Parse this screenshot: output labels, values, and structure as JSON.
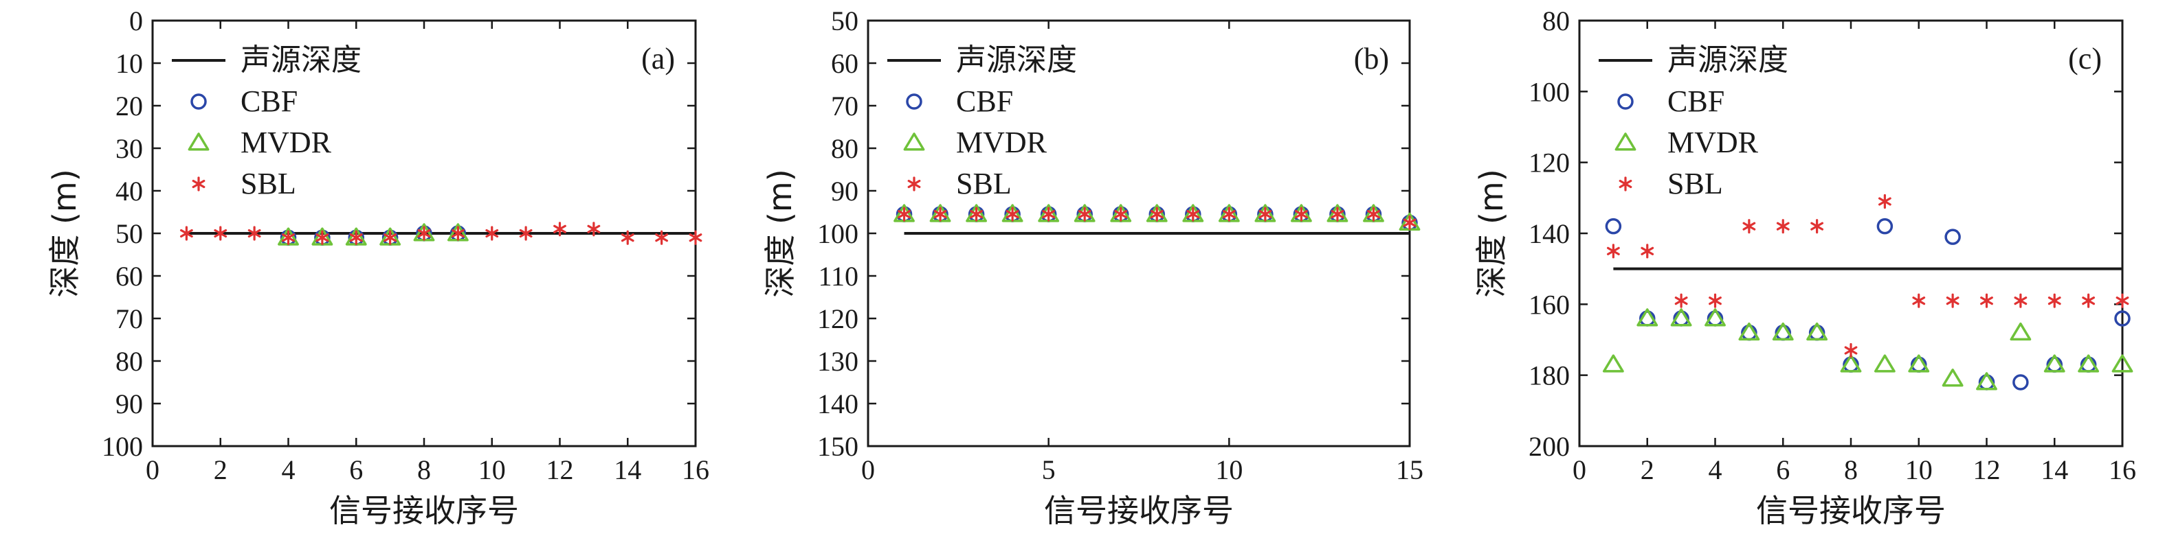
{
  "chart_data": [
    {
      "type": "scatter",
      "panel_label": "(a)",
      "xlabel": "信号接收序号",
      "ylabel": "深度 (m)",
      "xlim": [
        0,
        16
      ],
      "ylim": [
        0,
        100
      ],
      "y_inverted": true,
      "xticks": [
        0,
        2,
        4,
        6,
        8,
        10,
        12,
        14,
        16
      ],
      "yticks": [
        0,
        10,
        20,
        30,
        40,
        50,
        60,
        70,
        80,
        90,
        100
      ],
      "legend_position": "top-left",
      "reference_line": {
        "name": "声源深度",
        "y": 50,
        "x": [
          1,
          16
        ],
        "color": "#1a1a1a"
      },
      "series": [
        {
          "name": "CBF",
          "marker": "circle",
          "color": "#2a46a8",
          "points": [
            [
              4,
              51
            ],
            [
              5,
              51
            ],
            [
              6,
              51
            ],
            [
              7,
              51
            ],
            [
              8,
              50
            ],
            [
              9,
              50
            ]
          ]
        },
        {
          "name": "MVDR",
          "marker": "triangle",
          "color": "#6fc23a",
          "points": [
            [
              4,
              51
            ],
            [
              5,
              51
            ],
            [
              6,
              51
            ],
            [
              7,
              51
            ],
            [
              8,
              50
            ],
            [
              9,
              50
            ]
          ]
        },
        {
          "name": "SBL",
          "marker": "asterisk",
          "color": "#e03232",
          "points": [
            [
              1,
              50
            ],
            [
              2,
              50
            ],
            [
              3,
              50
            ],
            [
              4,
              51
            ],
            [
              5,
              51
            ],
            [
              6,
              51
            ],
            [
              7,
              51
            ],
            [
              8,
              50
            ],
            [
              9,
              50
            ],
            [
              10,
              50
            ],
            [
              11,
              50
            ],
            [
              12,
              49
            ],
            [
              13,
              49
            ],
            [
              14,
              51
            ],
            [
              15,
              51
            ],
            [
              16,
              51
            ]
          ]
        }
      ]
    },
    {
      "type": "scatter",
      "panel_label": "(b)",
      "xlabel": "信号接收序号",
      "ylabel": "深度 (m)",
      "xlim": [
        0,
        15
      ],
      "ylim": [
        50,
        150
      ],
      "y_inverted": true,
      "xticks": [
        0,
        5,
        10,
        15
      ],
      "yticks": [
        50,
        60,
        70,
        80,
        90,
        100,
        110,
        120,
        130,
        140,
        150
      ],
      "legend_position": "top-left",
      "reference_line": {
        "name": "声源深度",
        "y": 100,
        "x": [
          1,
          15
        ],
        "color": "#1a1a1a"
      },
      "series": [
        {
          "name": "CBF",
          "marker": "circle",
          "color": "#2a46a8",
          "points": [
            [
              1,
              95.5
            ],
            [
              2,
              95.5
            ],
            [
              3,
              95.5
            ],
            [
              4,
              95.5
            ],
            [
              5,
              95.5
            ],
            [
              6,
              95.5
            ],
            [
              7,
              95.5
            ],
            [
              8,
              95.5
            ],
            [
              9,
              95.5
            ],
            [
              10,
              95.5
            ],
            [
              11,
              95.5
            ],
            [
              12,
              95.5
            ],
            [
              13,
              95.5
            ],
            [
              14,
              95.5
            ],
            [
              15,
              97.5
            ]
          ]
        },
        {
          "name": "MVDR",
          "marker": "triangle",
          "color": "#6fc23a",
          "points": [
            [
              1,
              95.5
            ],
            [
              2,
              95.5
            ],
            [
              3,
              95.5
            ],
            [
              4,
              95.5
            ],
            [
              5,
              95.5
            ],
            [
              6,
              95.5
            ],
            [
              7,
              95.5
            ],
            [
              8,
              95.5
            ],
            [
              9,
              95.5
            ],
            [
              10,
              95.5
            ],
            [
              11,
              95.5
            ],
            [
              12,
              95.5
            ],
            [
              13,
              95.5
            ],
            [
              14,
              95.5
            ],
            [
              15,
              97.5
            ]
          ]
        },
        {
          "name": "SBL",
          "marker": "asterisk",
          "color": "#e03232",
          "points": [
            [
              1,
              95.5
            ],
            [
              2,
              95.5
            ],
            [
              3,
              95.5
            ],
            [
              4,
              95.5
            ],
            [
              5,
              95.5
            ],
            [
              6,
              95.5
            ],
            [
              7,
              95.5
            ],
            [
              8,
              95.5
            ],
            [
              9,
              95.5
            ],
            [
              10,
              95.5
            ],
            [
              11,
              95.5
            ],
            [
              12,
              95.5
            ],
            [
              13,
              95.5
            ],
            [
              14,
              95.5
            ],
            [
              15,
              97.5
            ]
          ]
        }
      ]
    },
    {
      "type": "scatter",
      "panel_label": "(c)",
      "xlabel": "信号接收序号",
      "ylabel": "深度 (m)",
      "xlim": [
        0,
        16
      ],
      "ylim": [
        80,
        200
      ],
      "y_inverted": true,
      "xticks": [
        0,
        2,
        4,
        6,
        8,
        10,
        12,
        14,
        16
      ],
      "yticks": [
        80,
        100,
        120,
        140,
        160,
        180,
        200
      ],
      "legend_position": "top-left",
      "reference_line": {
        "name": "声源深度",
        "y": 150,
        "x": [
          1,
          16
        ],
        "color": "#1a1a1a"
      },
      "series": [
        {
          "name": "CBF",
          "marker": "circle",
          "color": "#2a46a8",
          "points": [
            [
              1,
              138
            ],
            [
              2,
              164
            ],
            [
              3,
              164
            ],
            [
              4,
              164
            ],
            [
              5,
              168
            ],
            [
              6,
              168
            ],
            [
              7,
              168
            ],
            [
              8,
              177
            ],
            [
              9,
              138
            ],
            [
              10,
              177
            ],
            [
              11,
              141
            ],
            [
              12,
              182
            ],
            [
              13,
              182
            ],
            [
              14,
              177
            ],
            [
              15,
              177
            ],
            [
              16,
              164
            ]
          ]
        },
        {
          "name": "MVDR",
          "marker": "triangle",
          "color": "#6fc23a",
          "points": [
            [
              1,
              177
            ],
            [
              2,
              164
            ],
            [
              3,
              164
            ],
            [
              4,
              164
            ],
            [
              5,
              168
            ],
            [
              6,
              168
            ],
            [
              7,
              168
            ],
            [
              8,
              177
            ],
            [
              9,
              177
            ],
            [
              10,
              177
            ],
            [
              11,
              181
            ],
            [
              12,
              182
            ],
            [
              13,
              168
            ],
            [
              14,
              177
            ],
            [
              15,
              177
            ],
            [
              16,
              177
            ]
          ]
        },
        {
          "name": "SBL",
          "marker": "asterisk",
          "color": "#e03232",
          "points": [
            [
              1,
              145
            ],
            [
              2,
              145
            ],
            [
              3,
              159
            ],
            [
              4,
              159
            ],
            [
              5,
              138
            ],
            [
              6,
              138
            ],
            [
              7,
              138
            ],
            [
              8,
              173
            ],
            [
              9,
              131
            ],
            [
              10,
              159
            ],
            [
              11,
              159
            ],
            [
              12,
              159
            ],
            [
              13,
              159
            ],
            [
              14,
              159
            ],
            [
              15,
              159
            ],
            [
              16,
              159
            ]
          ]
        }
      ]
    }
  ]
}
